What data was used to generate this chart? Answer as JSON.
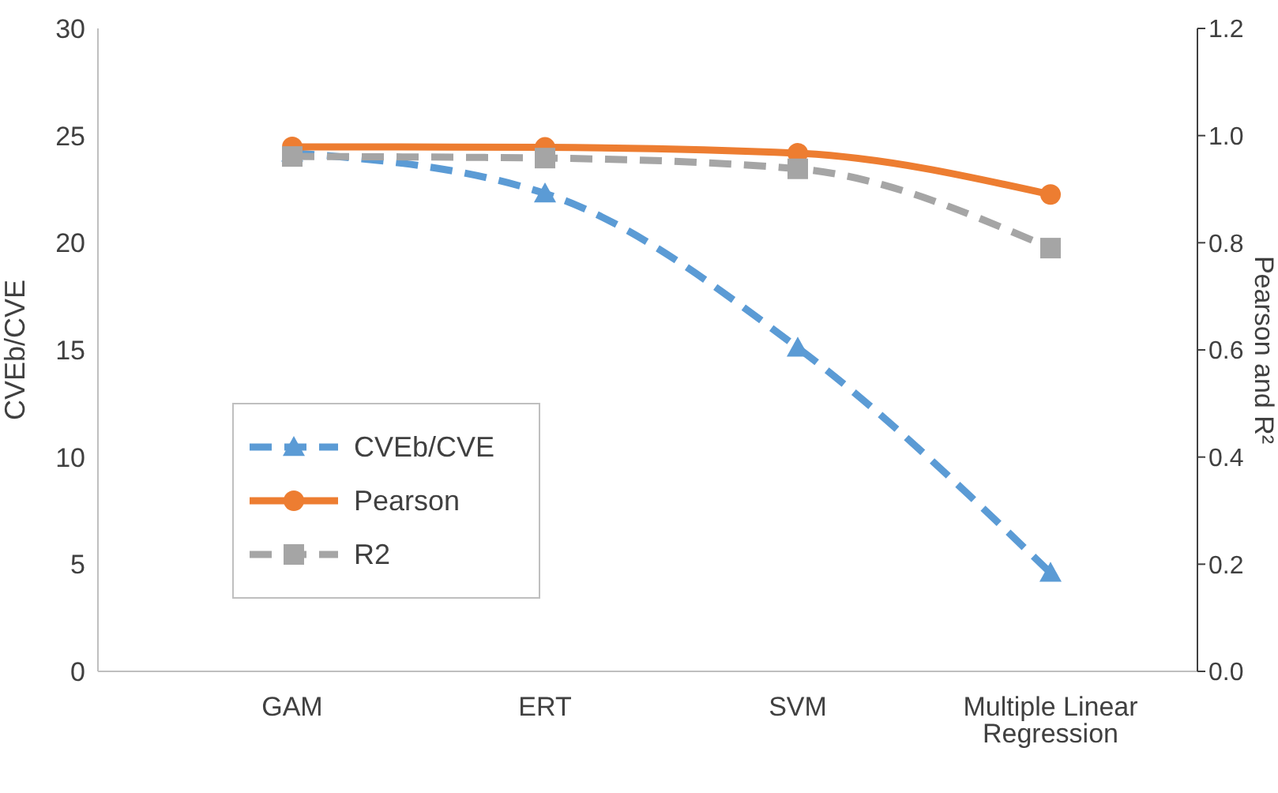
{
  "chart_data": {
    "type": "line",
    "xlabel": null,
    "ylabel": "CVEb/CVE",
    "y2label": "Pearson and R²",
    "categories": [
      "GAM",
      "ERT",
      "SVM",
      "Multiple Linear Regression"
    ],
    "series": [
      {
        "name": "CVEb/CVE",
        "color": "#5b9bd5",
        "values": [
          24.2,
          22.3,
          15.1,
          4.6
        ],
        "marker": "triangle",
        "line_style": "dashed"
      },
      {
        "name": "Pearson",
        "color": "#ed7d31",
        "values": [
          0.979,
          0.978,
          0.967,
          0.89
        ],
        "axis": "y2",
        "marker": "circle",
        "line_style": "solid"
      },
      {
        "name": "R2",
        "color": "#a5a5a5",
        "values": [
          0.961,
          0.958,
          0.938,
          0.79
        ],
        "axis": "y2",
        "marker": "square",
        "line_style": "dashed"
      }
    ],
    "ylim": [
      0,
      30
    ],
    "yticks": [
      0,
      5,
      10,
      15,
      20,
      25,
      30
    ],
    "y2lim": [
      0,
      1.2
    ],
    "y2ticks": [
      {
        "value": 0,
        "label": "0.0"
      },
      {
        "value": 0.2,
        "label": "0.2"
      },
      {
        "value": 0.4,
        "label": "0.4"
      },
      {
        "value": 0.6,
        "label": "0.6"
      },
      {
        "value": 0.8,
        "label": "0.8"
      },
      {
        "value": 1,
        "label": "1.0"
      },
      {
        "value": 1.2,
        "label": "1.2"
      }
    ],
    "grid": false,
    "legend": "bottom left"
  }
}
